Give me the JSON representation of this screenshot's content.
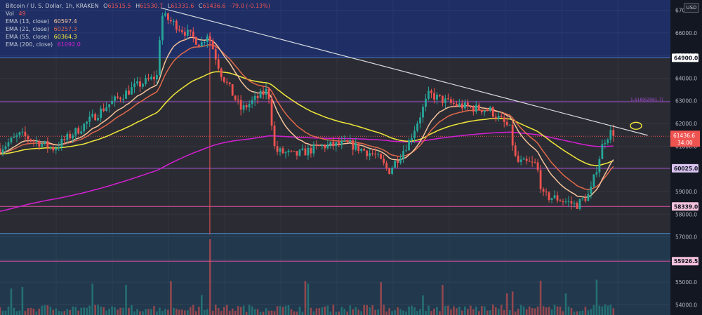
{
  "header": {
    "symbol": "Bitcoin / U. S. Dollar, 1h, KRAKEN",
    "ohlc": {
      "O": "61515.5",
      "H": "61530.7",
      "L": "61331.6",
      "C": "61436.6",
      "change": "-79.0 (-0.13%)"
    },
    "vol_label": "Vol",
    "vol_value": "49",
    "currency": "USD"
  },
  "indicators": [
    {
      "label": "EMA (13, close)",
      "value": "60597.4",
      "color": "#f5c29a"
    },
    {
      "label": "EMA (21, close)",
      "value": "60257.3",
      "color": "#e0684a"
    },
    {
      "label": "EMA (55, close)",
      "value": "60364.3",
      "color": "#f2e83a"
    },
    {
      "label": "EMA (200, close)",
      "value": "61092.0",
      "color": "#d41fd4"
    }
  ],
  "colors": {
    "up": "#26a69a",
    "down": "#ef5350",
    "background": "#131722"
  },
  "chart_data": {
    "type": "candlestick",
    "y_axis": {
      "ticks": [
        54000,
        55000,
        56000,
        57000,
        58000,
        59000,
        60000,
        61000,
        62000,
        63000,
        64000,
        65000,
        66000,
        67000
      ],
      "range": [
        53550,
        67450
      ]
    },
    "levels": [
      {
        "value": "64900.0",
        "color": "#4a78c8",
        "badge": "#ffffff"
      },
      {
        "value": "60025.0",
        "color": "#a24bd1",
        "badge": "#d8c3f0"
      },
      {
        "value": "58339.0",
        "color": "#e04fa8",
        "badge": "#f4c2dc"
      },
      {
        "value": "55926.5",
        "color": "#e04fa8",
        "badge": "#f4c2dc"
      }
    ],
    "fib_label": "1.618(62961.7)",
    "fib_value": 62961.7,
    "current_price": "61436.6",
    "countdown": "34:00",
    "trendline": [
      {
        "x": 0.24,
        "y": 67100
      },
      {
        "x": 0.94,
        "y": 61850
      }
    ],
    "price_path": [
      [
        0,
        60900
      ],
      [
        0.03,
        61500
      ],
      [
        0.08,
        60900
      ],
      [
        0.12,
        61800
      ],
      [
        0.16,
        62800
      ],
      [
        0.2,
        63600
      ],
      [
        0.235,
        64100
      ],
      [
        0.24,
        66800
      ],
      [
        0.265,
        66300
      ],
      [
        0.3,
        65500
      ],
      [
        0.31,
        66000
      ],
      [
        0.33,
        64200
      ],
      [
        0.36,
        62600
      ],
      [
        0.4,
        63500
      ],
      [
        0.41,
        60800
      ],
      [
        0.44,
        60600
      ],
      [
        0.48,
        61000
      ],
      [
        0.52,
        61100
      ],
      [
        0.56,
        60600
      ],
      [
        0.58,
        59900
      ],
      [
        0.61,
        61200
      ],
      [
        0.64,
        63300
      ],
      [
        0.67,
        62900
      ],
      [
        0.7,
        62700
      ],
      [
        0.73,
        62600
      ],
      [
        0.76,
        61800
      ],
      [
        0.77,
        60300
      ],
      [
        0.8,
        60200
      ],
      [
        0.81,
        58800
      ],
      [
        0.83,
        58700
      ],
      [
        0.86,
        58400
      ],
      [
        0.88,
        58900
      ],
      [
        0.9,
        61200
      ],
      [
        0.91,
        61600
      ]
    ]
  }
}
